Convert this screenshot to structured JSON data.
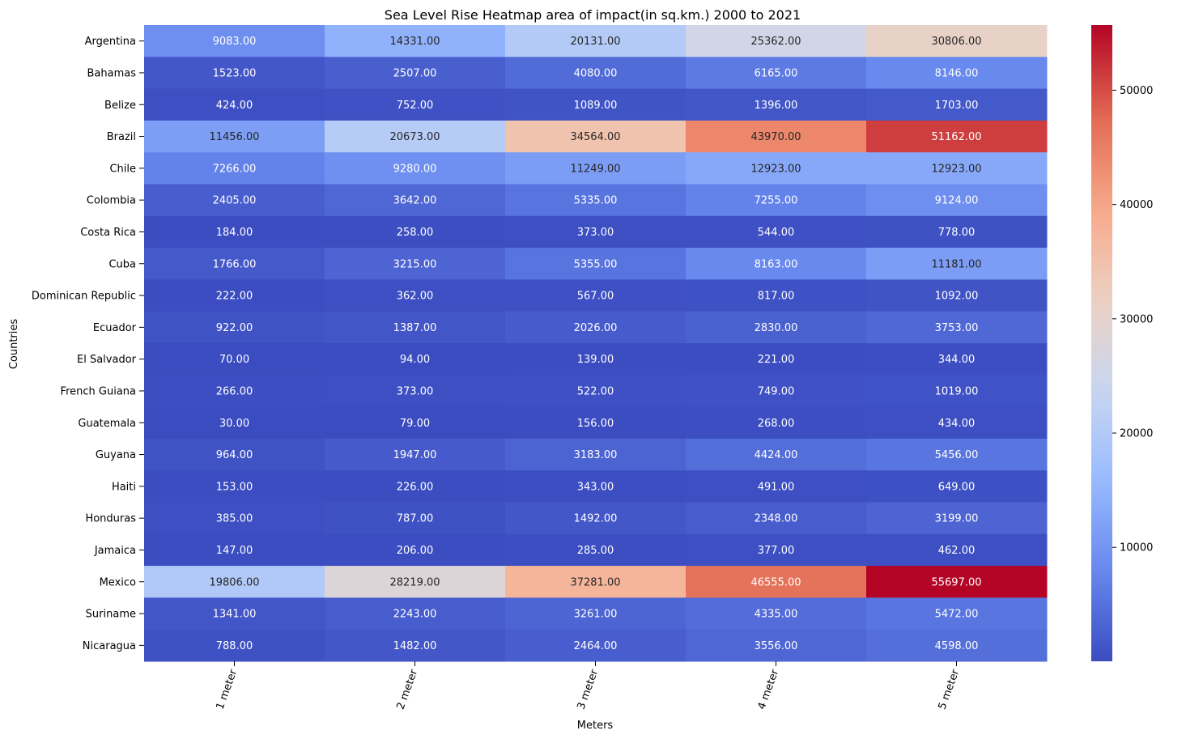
{
  "chart_data": {
    "type": "heatmap",
    "title": "Sea Level Rise Heatmap area of impact(in sq.km.) 2000 to 2021",
    "xlabel": "Meters",
    "ylabel": "Countries",
    "columns": [
      "1 meter",
      "2 meter",
      "3 meter",
      "4 meter",
      "5 meter"
    ],
    "rows": [
      "Argentina",
      "Bahamas",
      "Belize",
      "Brazil",
      "Chile",
      "Colombia",
      "Costa Rica",
      "Cuba",
      "Dominican Republic",
      "Ecuador",
      "El Salvador",
      "French Guiana",
      "Guatemala",
      "Guyana",
      "Haiti",
      "Honduras",
      "Jamaica",
      "Mexico",
      "Suriname",
      "Nicaragua"
    ],
    "values": [
      [
        9083,
        14331,
        20131,
        25362,
        30806
      ],
      [
        1523,
        2507,
        4080,
        6165,
        8146
      ],
      [
        424,
        752,
        1089,
        1396,
        1703
      ],
      [
        11456,
        20673,
        34564,
        43970,
        51162
      ],
      [
        7266,
        9280,
        11249,
        12923,
        12923
      ],
      [
        2405,
        3642,
        5335,
        7255,
        9124
      ],
      [
        184,
        258,
        373,
        544,
        778
      ],
      [
        1766,
        3215,
        5355,
        8163,
        11181
      ],
      [
        222,
        362,
        567,
        817,
        1092
      ],
      [
        922,
        1387,
        2026,
        2830,
        3753
      ],
      [
        70,
        94,
        139,
        221,
        344
      ],
      [
        266,
        373,
        522,
        749,
        1019
      ],
      [
        30,
        79,
        156,
        268,
        434
      ],
      [
        964,
        1947,
        3183,
        4424,
        5456
      ],
      [
        153,
        226,
        343,
        491,
        649
      ],
      [
        385,
        787,
        1492,
        2348,
        3199
      ],
      [
        147,
        206,
        285,
        377,
        462
      ],
      [
        19806,
        28219,
        37281,
        46555,
        55697
      ],
      [
        1341,
        2243,
        3261,
        4335,
        5472
      ],
      [
        788,
        1482,
        2464,
        3556,
        4598
      ]
    ],
    "value_format_decimals": 2,
    "colormap": "coolwarm",
    "colorbar": {
      "min": 30,
      "max": 55697,
      "ticks": [
        10000,
        20000,
        30000,
        40000,
        50000
      ],
      "tick_labels": [
        "10000",
        "20000",
        "30000",
        "40000",
        "50000"
      ]
    },
    "colormap_stops": [
      "#3b4cc0",
      "#6788ee",
      "#9abbff",
      "#c9d7f0",
      "#edd1c2",
      "#f7a889",
      "#e26952",
      "#b40426"
    ],
    "annotation_colors": {
      "light": "#ffffff",
      "dark": "#262626"
    }
  }
}
